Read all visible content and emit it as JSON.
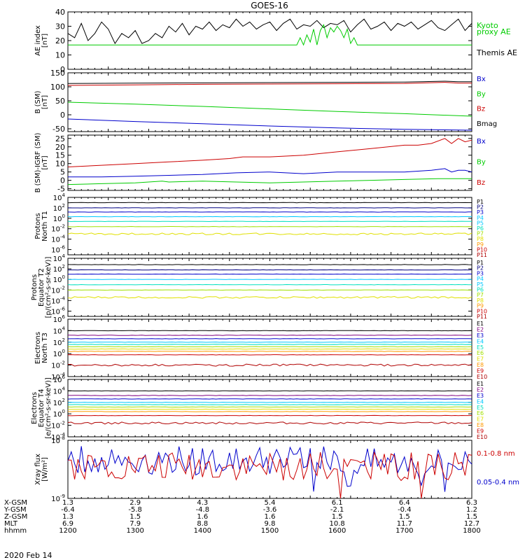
{
  "title": "GOES-16",
  "date_label": "2020 Feb 14",
  "ephemeris": {
    "row_labels": [
      "X-GSM",
      "Y-GSM",
      "Z-GSM",
      "MLT",
      "hhmm"
    ],
    "rows": [
      [
        "1.3",
        "2.9",
        "4.3",
        "5.4",
        "6.1",
        "6.4",
        "6.3"
      ],
      [
        "-6.4",
        "-5.8",
        "-4.8",
        "-3.6",
        "-2.1",
        "-0.4",
        "1.2"
      ],
      [
        "1.3",
        "1.5",
        "1.6",
        "1.6",
        "1.5",
        "1.5",
        "1.5"
      ],
      [
        "6.9",
        "7.9",
        "8.8",
        "9.8",
        "10.8",
        "11.7",
        "12.7"
      ],
      [
        "1200",
        "1300",
        "1400",
        "1500",
        "1600",
        "1700",
        "1800"
      ]
    ]
  },
  "colors": {
    "black": "#000000",
    "red": "#cc0000",
    "green": "#00cc00",
    "blue": "#0000cc",
    "navy": "#000080",
    "purple": "#800080",
    "cyan": "#00c8ff",
    "aqua": "#00e0c0",
    "yellow_green": "#a0e000",
    "yellow": "#e0e000",
    "orange": "#ff9900",
    "dark_red": "#b00000"
  },
  "chart_data": [
    {
      "type": "line",
      "panel": "ae",
      "ylabel": [
        "AE index",
        "[nT]"
      ],
      "ylim": [
        0,
        40
      ],
      "yticks": [
        "0",
        "10",
        "20",
        "30",
        "40"
      ],
      "xlim": [
        1200,
        1800
      ],
      "legend": [
        {
          "label": "Kyoto",
          "color": "green"
        },
        {
          "label": "proxy AE",
          "color": "green"
        },
        {
          "label": "Themis AE",
          "color": "black"
        }
      ],
      "series": [
        {
          "color": "black",
          "x": [
            1200,
            1210,
            1220,
            1230,
            1240,
            1250,
            1260,
            1270,
            1280,
            1290,
            1300,
            1310,
            1320,
            1330,
            1340,
            1350,
            1360,
            1370,
            1380,
            1390,
            1400,
            1410,
            1420,
            1430,
            1440,
            1450,
            1460,
            1470,
            1480,
            1490,
            1500,
            1510,
            1520,
            1530,
            1540,
            1550,
            1560,
            1570,
            1580,
            1590,
            1600,
            1610,
            1620,
            1630,
            1640,
            1650,
            1660,
            1670,
            1680,
            1690,
            1700,
            1710,
            1720,
            1730,
            1740,
            1750,
            1760,
            1770,
            1780,
            1790,
            1800
          ],
          "y": [
            25,
            22,
            32,
            20,
            25,
            33,
            28,
            18,
            25,
            22,
            27,
            18,
            20,
            25,
            22,
            30,
            26,
            32,
            24,
            30,
            28,
            33,
            27,
            31,
            29,
            35,
            30,
            33,
            28,
            31,
            33,
            27,
            32,
            35,
            28,
            31,
            30,
            34,
            29,
            32,
            31,
            34,
            26,
            31,
            35,
            28,
            30,
            33,
            27,
            32,
            30,
            33,
            28,
            31,
            34,
            29,
            27,
            31,
            35,
            27,
            32
          ]
        },
        {
          "color": "green",
          "x": [
            1200,
            1540,
            1545,
            1550,
            1555,
            1560,
            1565,
            1570,
            1575,
            1580,
            1585,
            1590,
            1595,
            1600,
            1605,
            1610,
            1615,
            1620,
            1625,
            1630,
            1640,
            1800
          ],
          "y": [
            17,
            17,
            22,
            17,
            24,
            19,
            28,
            17,
            27,
            31,
            22,
            29,
            26,
            30,
            27,
            22,
            28,
            18,
            22,
            17,
            17,
            17
          ]
        }
      ]
    },
    {
      "type": "line",
      "panel": "b_sm",
      "ylabel": [
        "B (SM)",
        "[nT]"
      ],
      "ylim": [
        -60,
        150
      ],
      "yticks": [
        "-50",
        "0",
        "50",
        "100",
        "150"
      ],
      "ytick_values": [
        -50,
        0,
        50,
        100,
        150
      ],
      "xlim": [
        1200,
        1800
      ],
      "legend": [
        {
          "label": "Bx",
          "color": "blue"
        },
        {
          "label": "By",
          "color": "green"
        },
        {
          "label": "Bz",
          "color": "red"
        },
        {
          "label": "Bmag",
          "color": "black"
        }
      ],
      "series": [
        {
          "color": "black",
          "x": [
            1200,
            1300,
            1400,
            1500,
            1600,
            1700,
            1760,
            1780,
            1800
          ],
          "y": [
            112,
            113,
            114,
            115,
            116,
            117,
            120,
            118,
            118
          ]
        },
        {
          "color": "red",
          "x": [
            1200,
            1300,
            1400,
            1500,
            1600,
            1700,
            1760,
            1780,
            1800
          ],
          "y": [
            105,
            107,
            109,
            110,
            111,
            112,
            116,
            113,
            113
          ]
        },
        {
          "color": "green",
          "x": [
            1200,
            1300,
            1400,
            1500,
            1600,
            1700,
            1800
          ],
          "y": [
            45,
            38,
            30,
            21,
            12,
            4,
            -5
          ]
        },
        {
          "color": "blue",
          "x": [
            1200,
            1300,
            1400,
            1500,
            1600,
            1700,
            1800
          ],
          "y": [
            -15,
            -24,
            -32,
            -40,
            -47,
            -52,
            -55
          ]
        }
      ]
    },
    {
      "type": "line",
      "panel": "b_diff",
      "ylabel": [
        "B (SM)-IGRF (SM)",
        "[nT]"
      ],
      "ylim": [
        -6,
        27
      ],
      "yticks": [
        "-5",
        "0",
        "5",
        "10",
        "15",
        "20",
        "25"
      ],
      "ytick_values": [
        -5,
        0,
        5,
        10,
        15,
        20,
        25
      ],
      "xlim": [
        1200,
        1800
      ],
      "legend": [
        {
          "label": "Bx",
          "color": "blue"
        },
        {
          "label": "By",
          "color": "green"
        },
        {
          "label": "Bz",
          "color": "red"
        }
      ],
      "series": [
        {
          "color": "red",
          "x": [
            1200,
            1250,
            1300,
            1350,
            1400,
            1440,
            1460,
            1500,
            1550,
            1600,
            1650,
            1700,
            1720,
            1740,
            1760,
            1770,
            1780,
            1790,
            1800
          ],
          "y": [
            8,
            9,
            10,
            11,
            12,
            13,
            14,
            14,
            15,
            17,
            19,
            21,
            21,
            22,
            25,
            22,
            25,
            23,
            24
          ]
        },
        {
          "color": "blue",
          "x": [
            1200,
            1250,
            1300,
            1350,
            1400,
            1450,
            1500,
            1550,
            1600,
            1650,
            1700,
            1740,
            1760,
            1770,
            1780,
            1790,
            1800
          ],
          "y": [
            2,
            2,
            2.5,
            3,
            3.5,
            4.5,
            5,
            4,
            5,
            5,
            5,
            6,
            7,
            5,
            6,
            6,
            5
          ]
        },
        {
          "color": "green",
          "x": [
            1200,
            1250,
            1300,
            1320,
            1340,
            1350,
            1400,
            1450,
            1500,
            1550,
            1600,
            1650,
            1700,
            1750,
            1800
          ],
          "y": [
            -2.5,
            -2,
            -1.5,
            -1,
            -0.5,
            -1,
            -0.5,
            -1,
            -1.5,
            -1,
            -0.5,
            0,
            0.5,
            1,
            1
          ]
        }
      ]
    },
    {
      "type": "line",
      "panel": "protons_t1",
      "scale": "log",
      "ylabel": [
        "Protons",
        "North T1"
      ],
      "ylim_log10": [
        -7,
        4
      ],
      "ytick_powers": [
        -6,
        -4,
        -2,
        0,
        2,
        4
      ],
      "xlim": [
        1200,
        1800
      ],
      "legend": [
        {
          "label": "P1",
          "color": "black"
        },
        {
          "label": "P2",
          "color": "navy"
        },
        {
          "label": "P3",
          "color": "blue"
        },
        {
          "label": "P4",
          "color": "cyan"
        },
        {
          "label": "P5",
          "color": "cyan"
        },
        {
          "label": "P6",
          "color": "aqua"
        },
        {
          "label": "P7",
          "color": "yellow_green"
        },
        {
          "label": "P8",
          "color": "yellow"
        },
        {
          "label": "P9",
          "color": "orange"
        },
        {
          "label": "P10",
          "color": "red"
        },
        {
          "label": "P11",
          "color": "dark_red"
        }
      ],
      "series": [
        {
          "color": "black",
          "level_log10": 3.0
        },
        {
          "color": "navy",
          "level_log10": 2.0
        },
        {
          "color": "blue",
          "level_log10": 1.2
        },
        {
          "color": "cyan",
          "level_log10": 0.3
        },
        {
          "color": "aqua",
          "level_log10": -0.6
        },
        {
          "color": "yellow_green",
          "level_log10": -1.6
        },
        {
          "color": "yellow",
          "level_log10": -3.0
        }
      ]
    },
    {
      "type": "line",
      "panel": "protons_t2",
      "scale": "log",
      "ylabel": [
        "Protons",
        "Equator T2",
        "[p/(cm²-s-sr-keV)]"
      ],
      "ylim_log10": [
        -7,
        4
      ],
      "ytick_powers": [
        -6,
        -4,
        -2,
        0,
        2,
        4
      ],
      "xlim": [
        1200,
        1800
      ],
      "legend": [
        {
          "label": "P1",
          "color": "black"
        },
        {
          "label": "P2",
          "color": "navy"
        },
        {
          "label": "P3",
          "color": "blue"
        },
        {
          "label": "P4",
          "color": "cyan"
        },
        {
          "label": "P5",
          "color": "cyan"
        },
        {
          "label": "P6",
          "color": "aqua"
        },
        {
          "label": "P7",
          "color": "yellow_green"
        },
        {
          "label": "P8",
          "color": "yellow"
        },
        {
          "label": "P9",
          "color": "orange"
        },
        {
          "label": "P10",
          "color": "red"
        },
        {
          "label": "P11",
          "color": "dark_red"
        }
      ],
      "series": [
        {
          "color": "black",
          "level_log10": 2.8
        },
        {
          "color": "navy",
          "level_log10": 1.8
        },
        {
          "color": "blue",
          "level_log10": 1.0
        },
        {
          "color": "cyan",
          "level_log10": 0.0
        },
        {
          "color": "aqua",
          "level_log10": -1.0
        },
        {
          "color": "yellow_green",
          "level_log10": -2.0
        },
        {
          "color": "yellow",
          "level_log10": -3.4
        }
      ]
    },
    {
      "type": "line",
      "panel": "electrons_t3",
      "scale": "log",
      "ylabel": [
        "Electrons",
        "North T3"
      ],
      "ylim_log10": [
        -4,
        6
      ],
      "ytick_powers": [
        -4,
        -2,
        0,
        2,
        4,
        6
      ],
      "xlim": [
        1200,
        1800
      ],
      "legend": [
        {
          "label": "E1",
          "color": "black"
        },
        {
          "label": "E2",
          "color": "purple"
        },
        {
          "label": "E3",
          "color": "blue"
        },
        {
          "label": "E4",
          "color": "cyan"
        },
        {
          "label": "E5",
          "color": "aqua"
        },
        {
          "label": "E6",
          "color": "yellow_green"
        },
        {
          "label": "E7",
          "color": "yellow"
        },
        {
          "label": "E8",
          "color": "orange"
        },
        {
          "label": "E9",
          "color": "red"
        },
        {
          "label": "E10",
          "color": "dark_red"
        }
      ],
      "series": [
        {
          "color": "black",
          "level_log10": 4.0
        },
        {
          "color": "purple",
          "level_log10": 3.2
        },
        {
          "color": "blue",
          "level_log10": 2.6
        },
        {
          "color": "cyan",
          "level_log10": 2.0
        },
        {
          "color": "aqua",
          "level_log10": 1.6
        },
        {
          "color": "yellow_green",
          "level_log10": 1.2
        },
        {
          "color": "yellow",
          "level_log10": 0.8
        },
        {
          "color": "orange",
          "level_log10": 0.4
        },
        {
          "color": "red",
          "level_log10": -0.2
        },
        {
          "color": "dark_red",
          "level_log10": -2.0
        }
      ]
    },
    {
      "type": "line",
      "panel": "electrons_t4",
      "scale": "log",
      "ylabel": [
        "Electrons",
        "Equator T4",
        "[e/(cm²-s-sr-keV)]"
      ],
      "ylim_log10": [
        -4,
        6
      ],
      "ytick_powers": [
        -4,
        -2,
        0,
        2,
        4,
        6
      ],
      "xlim": [
        1200,
        1800
      ],
      "legend": [
        {
          "label": "E1",
          "color": "black"
        },
        {
          "label": "E2",
          "color": "purple"
        },
        {
          "label": "E3",
          "color": "blue"
        },
        {
          "label": "E4",
          "color": "cyan"
        },
        {
          "label": "E5",
          "color": "aqua"
        },
        {
          "label": "E6",
          "color": "yellow_green"
        },
        {
          "label": "E7",
          "color": "yellow"
        },
        {
          "label": "E8",
          "color": "orange"
        },
        {
          "label": "E9",
          "color": "red"
        },
        {
          "label": "E10",
          "color": "dark_red"
        }
      ],
      "series": [
        {
          "color": "black",
          "level_log10": 4.0
        },
        {
          "color": "purple",
          "level_log10": 3.2
        },
        {
          "color": "blue",
          "level_log10": 2.6
        },
        {
          "color": "cyan",
          "level_log10": 2.0
        },
        {
          "color": "aqua",
          "level_log10": 1.6
        },
        {
          "color": "yellow_green",
          "level_log10": 1.2
        },
        {
          "color": "yellow",
          "level_log10": 0.8
        },
        {
          "color": "orange",
          "level_log10": 0.4
        },
        {
          "color": "red",
          "level_log10": -0.3
        },
        {
          "color": "dark_red",
          "level_log10": -1.6
        }
      ]
    },
    {
      "type": "line",
      "panel": "xray",
      "scale": "log",
      "ylabel": [
        "Xray flux",
        "[W/m²]"
      ],
      "ylim_log10": [
        -9,
        -8
      ],
      "ytick_powers": [
        -9,
        -8
      ],
      "xlim": [
        1200,
        1800
      ],
      "legend": [
        {
          "label": "0.1-0.8 nm",
          "color": "red"
        },
        {
          "label": "0.05-0.4 nm",
          "color": "blue"
        }
      ],
      "series": [
        {
          "color": "blue",
          "level_log10": -8.35
        },
        {
          "color": "red",
          "level_log10": -8.45
        }
      ]
    }
  ]
}
